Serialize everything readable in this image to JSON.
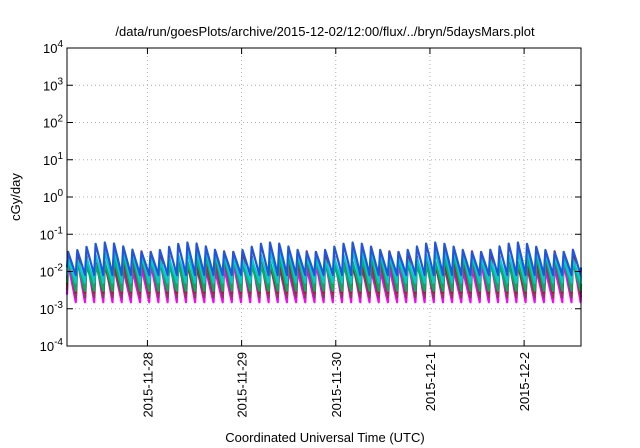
{
  "chart_data": {
    "type": "line",
    "title": "/data/run/goesPlots/archive/2015-12-02/12:00/flux/../bryn/5daysMars.plot",
    "xlabel": "Coordinated Universal Time (UTC)",
    "ylabel": "cGy/day",
    "yscale": "log",
    "ylim": [
      0.0001,
      10000
    ],
    "xlim": [
      "2015-11-27T03:30",
      "2015-12-02T14:30"
    ],
    "y_ticks": [
      {
        "base": "10",
        "exp": "-4",
        "value": 0.0001
      },
      {
        "base": "10",
        "exp": "-3",
        "value": 0.001
      },
      {
        "base": "10",
        "exp": "-2",
        "value": 0.01
      },
      {
        "base": "10",
        "exp": "-1",
        "value": 0.1
      },
      {
        "base": "10",
        "exp": "0",
        "value": 1
      },
      {
        "base": "10",
        "exp": "1",
        "value": 10
      },
      {
        "base": "10",
        "exp": "2",
        "value": 100
      },
      {
        "base": "10",
        "exp": "3",
        "value": 1000
      },
      {
        "base": "10",
        "exp": "4",
        "value": 10000
      }
    ],
    "x_ticks": [
      {
        "label": "2015-11-28",
        "value": "2015-11-28T00:00"
      },
      {
        "label": "2015-11-29",
        "value": "2015-11-29T00:00"
      },
      {
        "label": "2015-11-30",
        "value": "2015-11-30T00:00"
      },
      {
        "label": "2015-12-1",
        "value": "2015-12-01T00:00"
      },
      {
        "label": "2015-12-2",
        "value": "2015-12-02T00:00"
      }
    ],
    "grid": true,
    "legend": "none",
    "pattern": "periodic sawtooth, about 56 peaks over the 5.5-day window",
    "series": [
      {
        "color": "#ff00ff",
        "peak": 0.025,
        "trough": 0.0015
      },
      {
        "color": "#8b3a62",
        "peak": 0.03,
        "trough": 0.002
      },
      {
        "color": "#cc0000",
        "peak": 0.035,
        "trough": 0.0028
      },
      {
        "color": "#00b060",
        "peak": 0.03,
        "trough": 0.003
      },
      {
        "color": "#00cccc",
        "peak": 0.04,
        "trough": 0.005
      },
      {
        "color": "#2255dd",
        "peak": 0.06,
        "trough": 0.008
      }
    ]
  }
}
